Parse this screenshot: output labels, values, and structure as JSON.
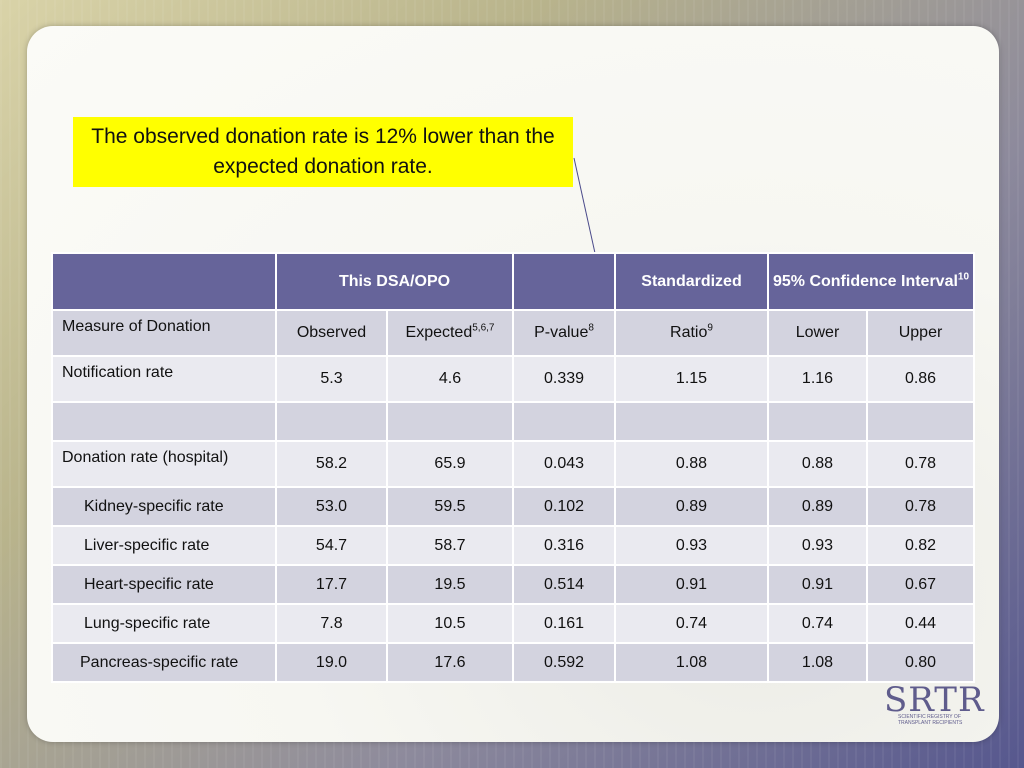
{
  "callout": {
    "text": "The observed donation rate is 12% lower than the expected donation rate."
  },
  "table": {
    "header": {
      "group_dsa": "This DSA/OPO",
      "group_standardized": "Standardized",
      "group_ci": "95% Confidence Interval",
      "group_ci_sup": "10"
    },
    "subheader": {
      "measure": "Measure of Donation",
      "observed": "Observed",
      "expected": "Expected",
      "expected_sup": "5,6,7",
      "pvalue": "P-value",
      "pvalue_sup": "8",
      "ratio": "Ratio",
      "ratio_sup": "9",
      "lower": "Lower",
      "upper": "Upper"
    },
    "rows": [
      {
        "label": "Notification rate",
        "observed": "5.3",
        "expected": "4.6",
        "pvalue": "0.339",
        "ratio": "1.15",
        "lower": "1.16",
        "upper": "0.86"
      },
      {
        "label": "",
        "observed": "",
        "expected": "",
        "pvalue": "",
        "ratio": "",
        "lower": "",
        "upper": ""
      },
      {
        "label": "Donation rate (hospital)",
        "observed": "58.2",
        "expected": "65.9",
        "pvalue": "0.043",
        "ratio": "0.88",
        "lower": "0.88",
        "upper": "0.78"
      },
      {
        "label": "Kidney-specific rate",
        "observed": "53.0",
        "expected": "59.5",
        "pvalue": "0.102",
        "ratio": "0.89",
        "lower": "0.89",
        "upper": "0.78"
      },
      {
        "label": "Liver-specific rate",
        "observed": "54.7",
        "expected": "58.7",
        "pvalue": "0.316",
        "ratio": "0.93",
        "lower": "0.93",
        "upper": "0.82"
      },
      {
        "label": "Heart-specific rate",
        "observed": "17.7",
        "expected": "19.5",
        "pvalue": "0.514",
        "ratio": "0.91",
        "lower": "0.91",
        "upper": "0.67"
      },
      {
        "label": "Lung-specific rate",
        "observed": "7.8",
        "expected": "10.5",
        "pvalue": "0.161",
        "ratio": "0.74",
        "lower": "0.74",
        "upper": "0.44"
      },
      {
        "label": "Pancreas-specific rate",
        "observed": "19.0",
        "expected": "17.6",
        "pvalue": "0.592",
        "ratio": "1.08",
        "lower": "1.08",
        "upper": "0.80"
      }
    ]
  },
  "logo": {
    "name": "SRTR",
    "subtitle_line1": "Scientific Registry of",
    "subtitle_line2": "Transplant Recipients"
  },
  "colors": {
    "header_bg": "#66649a",
    "callout_bg": "#ffff00",
    "row_dark": "#d3d3df",
    "row_light": "#eaeaf0"
  }
}
